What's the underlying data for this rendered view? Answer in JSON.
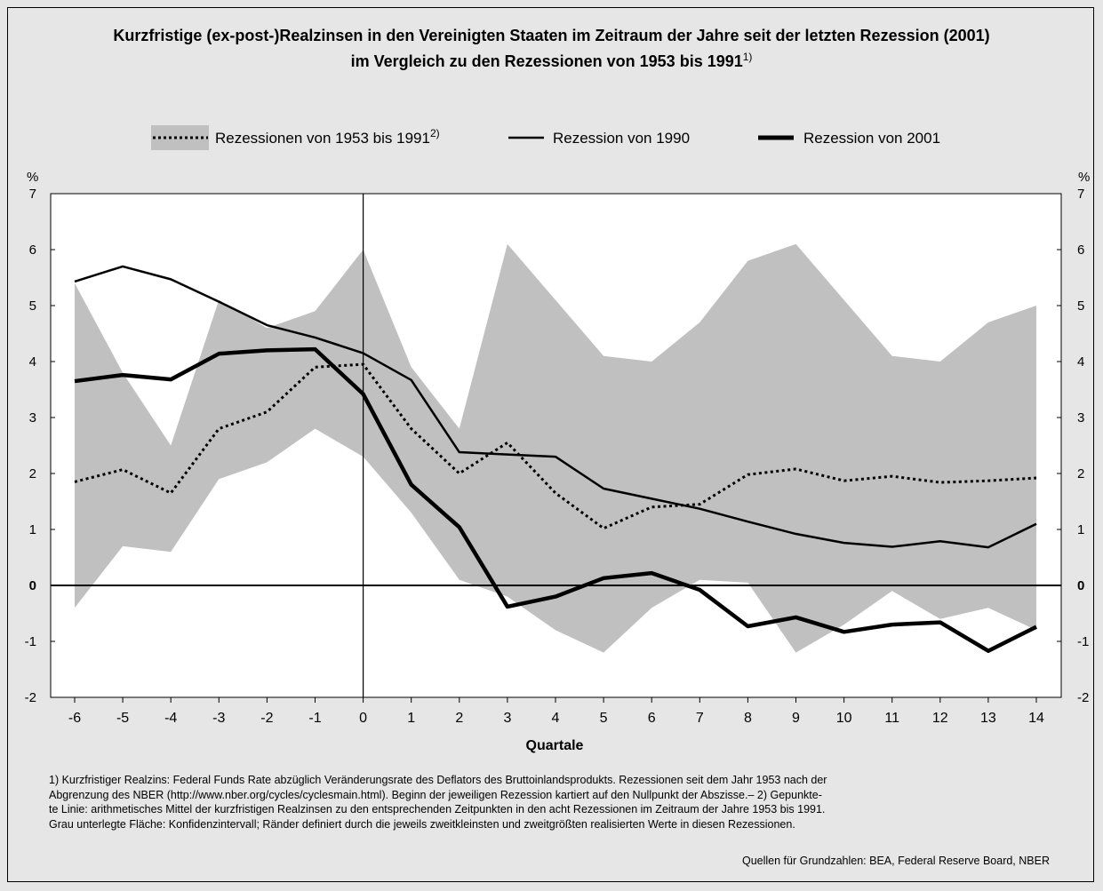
{
  "title": {
    "line1": "Kurzfristige (ex-post-)Realzinsen in den Vereinigten Staaten im Zeitraum der Jahre seit der letzten Rezession (2001)",
    "line2": "im Vergleich zu den Rezessionen von 1953 bis 1991",
    "line2_sup": "1)"
  },
  "legend": {
    "item1": "Rezessionen von 1953 bis 1991",
    "item1_sup": "2)",
    "item2": "Rezession von 1990",
    "item3": "Rezession von 2001"
  },
  "footnote": {
    "line1": "1) Kurzfristiger Realzins: Federal Funds Rate abzüglich Veränderungsrate des Deflators des Bruttoinlandsprodukts. Rezessionen seit dem Jahr 1953 nach der",
    "line2": "Abgrenzung des NBER (http://www.nber.org/cycles/cyclesmain.html). Beginn der jeweiligen Rezession kartiert auf den Nullpunkt der Abszisse.– 2) Gepunkte-",
    "line3": "te Linie: arithmetisches Mittel der kurzfristigen Realzinsen zu den entsprechenden Zeitpunkten in den acht Rezessionen im Zeitraum der Jahre 1953 bis 1991.",
    "line4": "Grau unterlegte Fläche: Konfidenzintervall; Ränder definiert durch die jeweils zweitkleinsten und zweitgrößten realisierten Werte in diesen Rezessionen."
  },
  "source": "Quellen für Grundzahlen: BEA, Federal Reserve Board, NBER",
  "colors": {
    "background": "#e6e6e6",
    "plot_background": "#ffffff",
    "band": "#c0c0c0",
    "lines": "#000000"
  },
  "chart_data": {
    "type": "line",
    "xlabel": "Quartale",
    "ylabel_left": "%",
    "ylabel_right": "%",
    "x": [
      -6,
      -5,
      -4,
      -3,
      -2,
      -1,
      0,
      1,
      2,
      3,
      4,
      5,
      6,
      7,
      8,
      9,
      10,
      11,
      12,
      13,
      14
    ],
    "xticks": [
      "-6",
      "-5",
      "-4",
      "-3",
      "-2",
      "-1",
      "0",
      "1",
      "2",
      "3",
      "4",
      "5",
      "6",
      "7",
      "8",
      "9",
      "10",
      "11",
      "12",
      "13",
      "14"
    ],
    "ylim": [
      -2,
      7
    ],
    "yticks": [
      "-2",
      "-1",
      "0",
      "1",
      "2",
      "3",
      "4",
      "5",
      "6",
      "7"
    ],
    "band": {
      "upper": [
        5.4,
        3.8,
        2.5,
        5.1,
        4.6,
        4.9,
        6.0,
        3.9,
        2.8,
        6.1,
        5.1,
        4.1,
        4.0,
        4.7,
        5.8,
        6.1,
        5.1,
        4.1,
        4.0,
        4.7,
        5.0
      ],
      "lower": [
        -0.4,
        0.7,
        0.6,
        1.9,
        2.2,
        2.8,
        2.3,
        1.3,
        0.1,
        -0.2,
        -0.8,
        -1.2,
        -0.4,
        0.1,
        0.05,
        -1.2,
        -0.7,
        -0.1,
        -0.6,
        -0.4,
        -0.8
      ]
    },
    "series": [
      {
        "name": "Rezessionen von 1953 bis 1991",
        "style": "dotted",
        "values": [
          1.85,
          2.07,
          1.65,
          2.8,
          3.1,
          3.9,
          3.95,
          2.8,
          2.0,
          2.55,
          1.65,
          1.02,
          1.4,
          1.45,
          1.98,
          2.08,
          1.87,
          1.95,
          1.84,
          1.87,
          1.92
        ]
      },
      {
        "name": "Rezession von 1990",
        "style": "thin",
        "values": [
          5.43,
          5.7,
          5.47,
          5.07,
          4.65,
          4.43,
          4.15,
          3.67,
          2.38,
          2.34,
          2.3,
          1.73,
          1.55,
          1.37,
          1.14,
          0.92,
          0.76,
          0.69,
          0.79,
          0.68,
          1.1
        ]
      },
      {
        "name": "Rezession von 2001",
        "style": "thick",
        "values": [
          3.65,
          3.76,
          3.68,
          4.14,
          4.2,
          4.22,
          3.42,
          1.8,
          1.04,
          -0.38,
          -0.2,
          0.13,
          0.22,
          -0.08,
          -0.73,
          -0.57,
          -0.83,
          -0.7,
          -0.66,
          -1.17,
          -0.74
        ]
      }
    ],
    "vertical_marker_x": 0,
    "zero_line": true
  }
}
